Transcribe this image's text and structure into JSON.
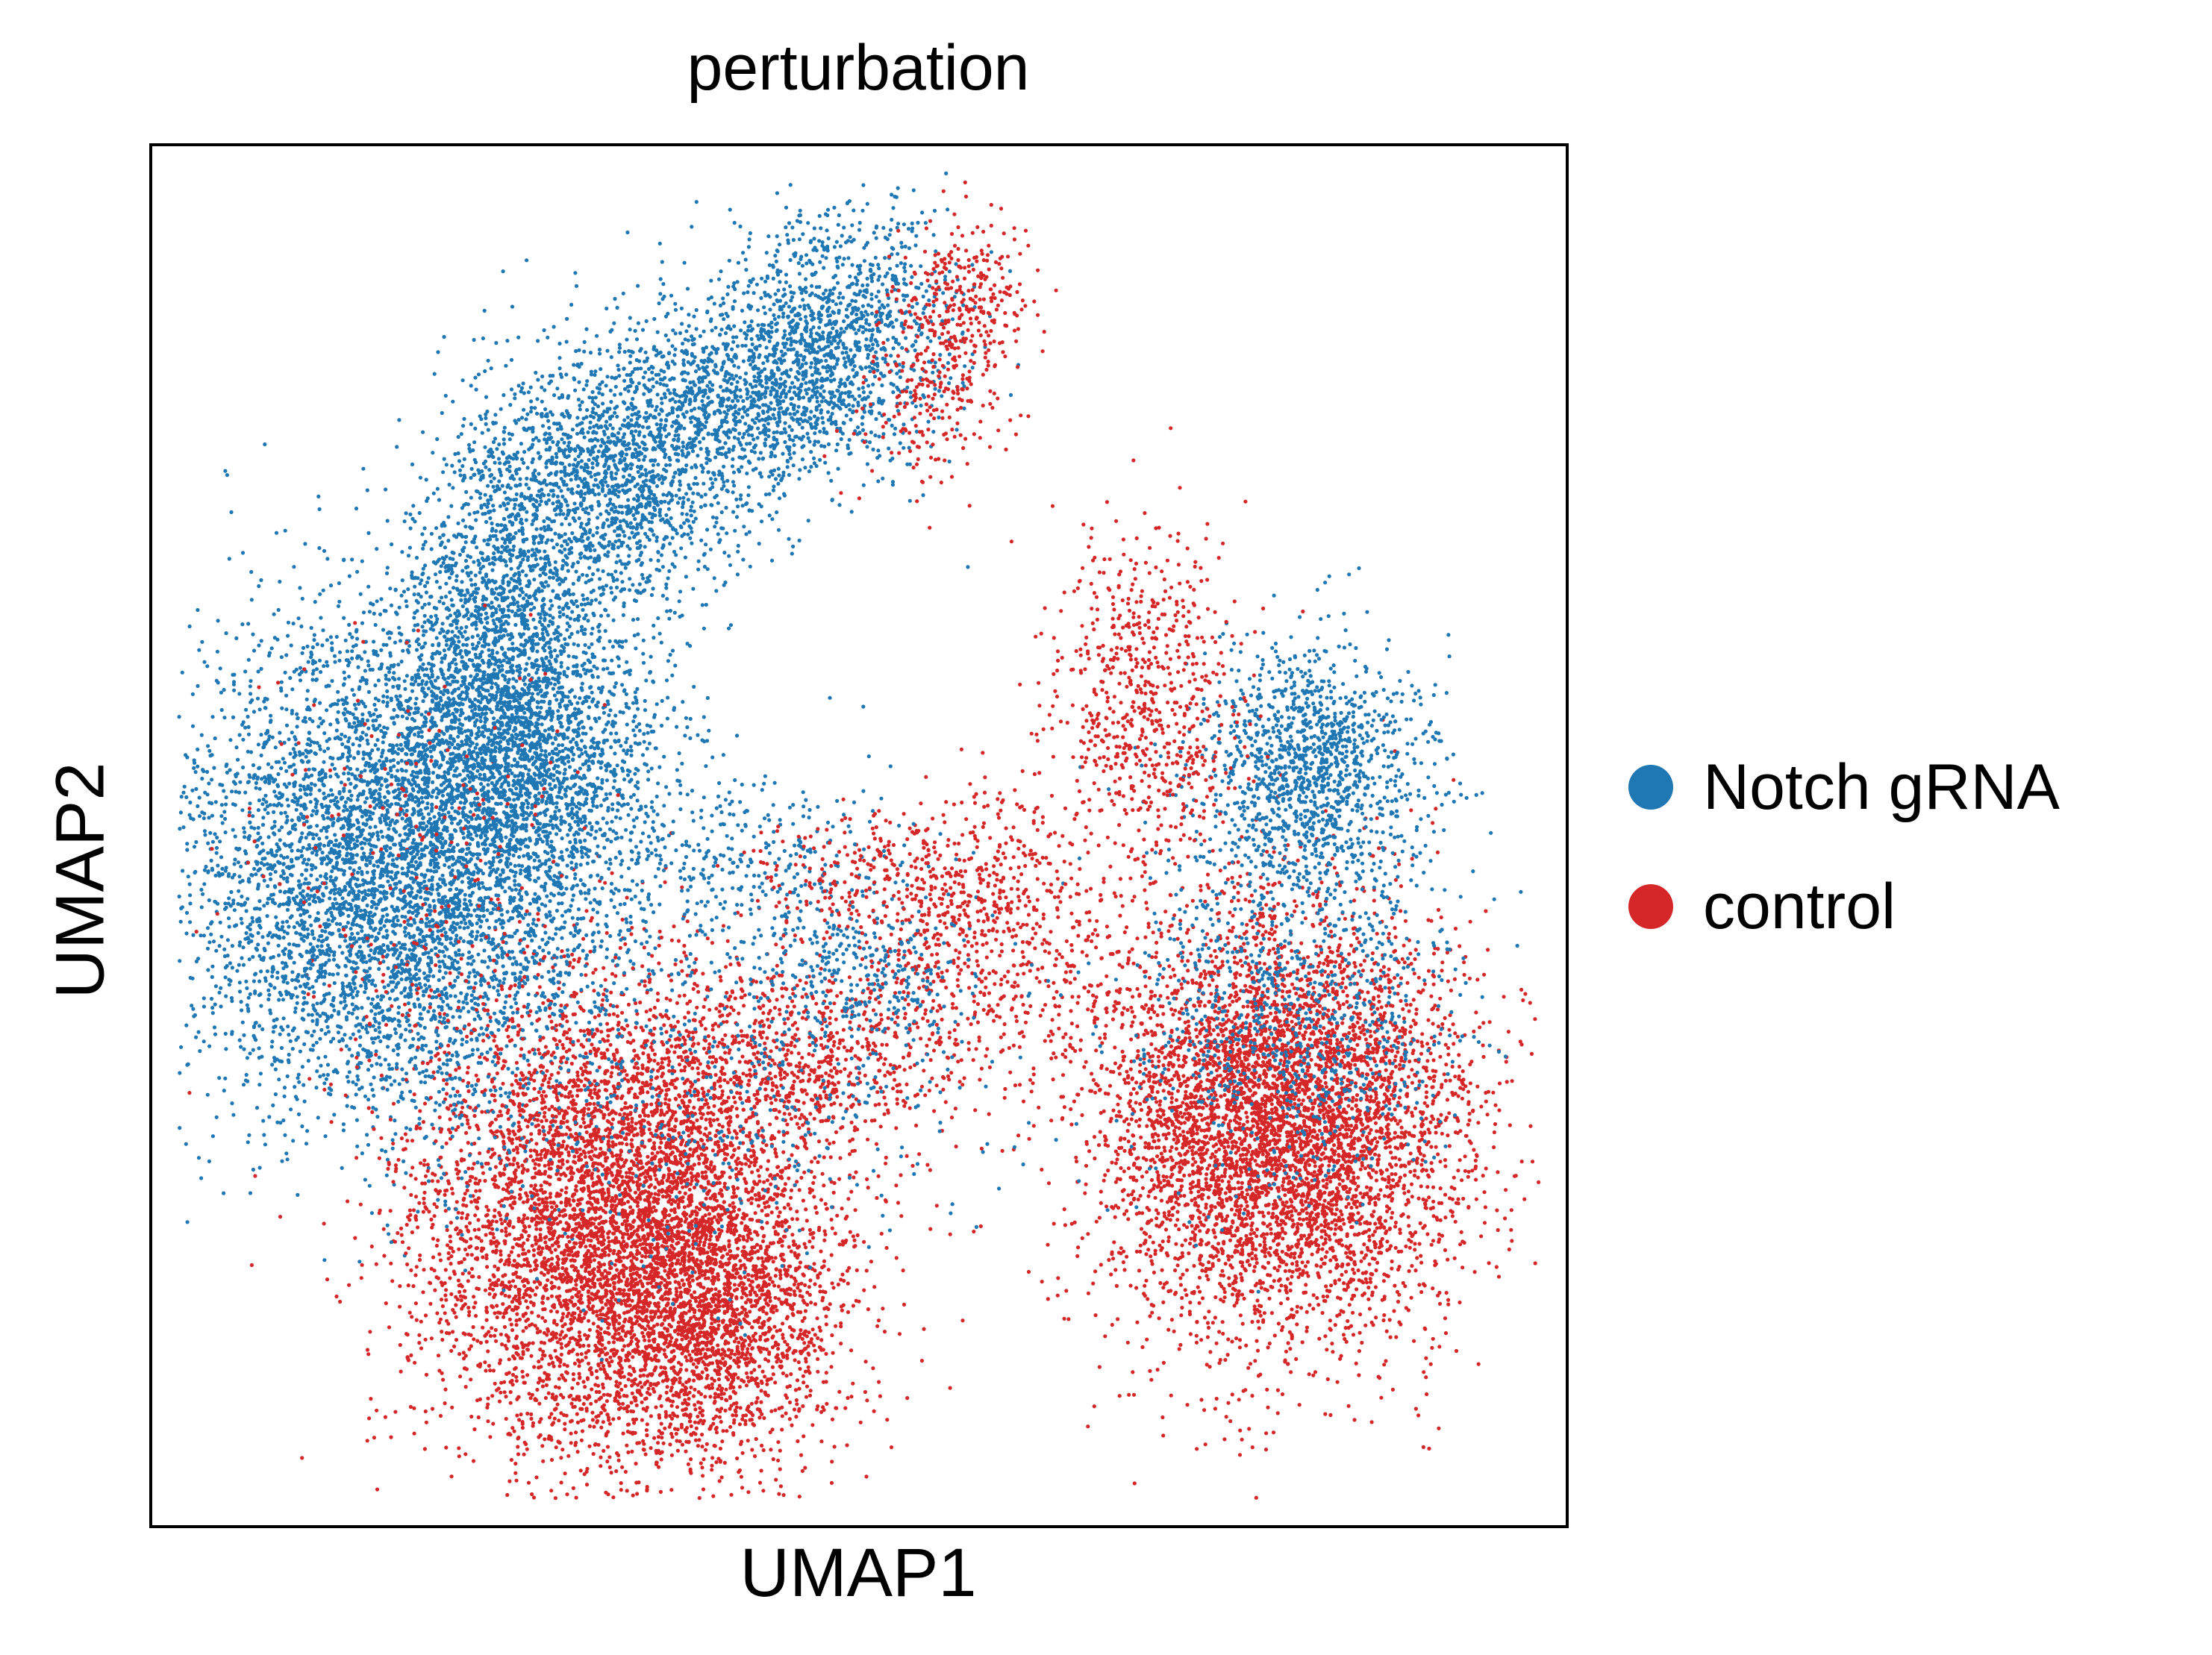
{
  "chart_data": {
    "type": "scatter",
    "title": "perturbation",
    "xlabel": "UMAP1",
    "ylabel": "UMAP2",
    "xlim": [
      0,
      100
    ],
    "ylim": [
      0,
      100
    ],
    "grid": false,
    "ticks": false,
    "legend_placement": "right",
    "colors": {
      "Notch gRNA": "#1f77b4",
      "control": "#d62728"
    },
    "series": [
      {
        "name": "Notch gRNA",
        "color": "#1f77b4",
        "clusters": [
          {
            "x": 17,
            "y": 47,
            "sx": 7.5,
            "sy": 9,
            "n": 5200
          },
          {
            "x": 26,
            "y": 56,
            "sx": 5,
            "sy": 6.5,
            "n": 2200
          },
          {
            "x": 25,
            "y": 67,
            "sx": 3.5,
            "sy": 7,
            "n": 1300
          },
          {
            "x": 33,
            "y": 76,
            "sx": 4.5,
            "sy": 4.5,
            "n": 1500
          },
          {
            "x": 43,
            "y": 82,
            "sx": 5,
            "sy": 3.5,
            "n": 1300
          },
          {
            "x": 49,
            "y": 88,
            "sx": 4,
            "sy": 4,
            "n": 800
          },
          {
            "x": 82,
            "y": 55,
            "sx": 4,
            "sy": 4.5,
            "n": 1300
          },
          {
            "x": 81,
            "y": 38,
            "sx": 6,
            "sy": 6,
            "n": 900
          },
          {
            "x": 40,
            "y": 33,
            "sx": 9,
            "sy": 8,
            "n": 500
          },
          {
            "x": 50,
            "y": 40,
            "sx": 4,
            "sy": 3,
            "n": 300
          },
          {
            "x": 42,
            "y": 48,
            "sx": 6,
            "sy": 3.5,
            "n": 350
          }
        ]
      },
      {
        "name": "control",
        "color": "#d62728",
        "clusters": [
          {
            "x": 33,
            "y": 22,
            "sx": 7,
            "sy": 8.5,
            "n": 5800
          },
          {
            "x": 40,
            "y": 15,
            "sx": 4.5,
            "sy": 5.5,
            "n": 1500
          },
          {
            "x": 80,
            "y": 29,
            "sx": 6.5,
            "sy": 7.5,
            "n": 5600
          },
          {
            "x": 46,
            "y": 34,
            "sx": 6,
            "sy": 3.5,
            "n": 700
          },
          {
            "x": 59,
            "y": 43,
            "sx": 5,
            "sy": 5,
            "n": 700
          },
          {
            "x": 70,
            "y": 60,
            "sx": 3.5,
            "sy": 6,
            "n": 700
          },
          {
            "x": 58,
            "y": 89,
            "sx": 2,
            "sy": 3,
            "n": 250
          },
          {
            "x": 55,
            "y": 83,
            "sx": 2.5,
            "sy": 4,
            "n": 250
          },
          {
            "x": 52,
            "y": 47,
            "sx": 5,
            "sy": 2.5,
            "n": 250
          },
          {
            "x": 20,
            "y": 47,
            "sx": 6,
            "sy": 8,
            "n": 200
          }
        ]
      }
    ]
  }
}
